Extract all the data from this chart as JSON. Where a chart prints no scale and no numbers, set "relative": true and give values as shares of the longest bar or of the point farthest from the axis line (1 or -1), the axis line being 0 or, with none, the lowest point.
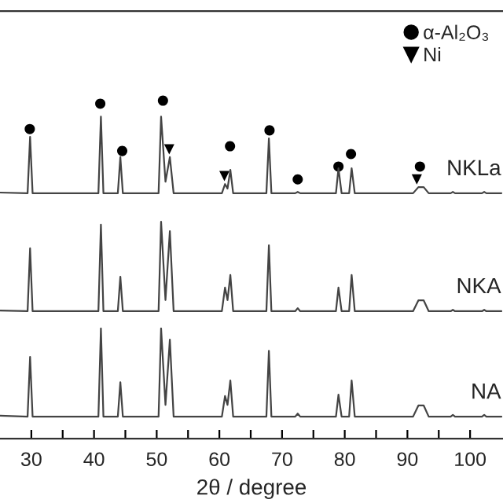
{
  "chart_data": {
    "type": "line",
    "relative": true,
    "xlabel": "2θ / degree",
    "x": [
      25,
      29.4,
      29.8,
      30.2,
      40.7,
      41.1,
      41.5,
      43.8,
      44.2,
      44.6,
      50.3,
      50.7,
      51.4,
      52.1,
      52.7,
      60.4,
      60.9,
      61.3,
      61.75,
      62.2,
      67.5,
      67.9,
      68.3,
      72.1,
      72.5,
      72.9,
      78.6,
      79,
      79.5,
      80.7,
      81.1,
      81.6,
      90.9,
      91.75,
      92.6,
      93.4,
      96.9,
      97.25,
      97.6,
      101.9,
      102.25,
      102.6,
      105
    ],
    "xlim": [
      25,
      105.25
    ],
    "xticks": [
      30,
      {
        "value": 35,
        "label": null
      },
      40,
      {
        "value": 45,
        "label": null
      },
      50,
      {
        "value": 55,
        "label": null
      },
      60,
      {
        "value": 65,
        "label": null
      },
      70,
      {
        "value": 75,
        "label": null
      },
      80,
      {
        "value": 85,
        "label": null
      },
      90,
      {
        "value": 95,
        "label": null
      },
      100
    ],
    "series": [
      {
        "name": "NKLa",
        "color": "#444444",
        "values": [
          0.728,
          0.726,
          0.893,
          0.726,
          0.726,
          0.953,
          0.726,
          0.726,
          0.833,
          0.726,
          0.726,
          0.953,
          0.76,
          0.833,
          0.726,
          0.726,
          0.753,
          0.74,
          0.795,
          0.726,
          0.726,
          0.888,
          0.726,
          0.726,
          0.73,
          0.726,
          0.726,
          0.8,
          0.726,
          0.726,
          0.8,
          0.726,
          0.726,
          0.744,
          0.744,
          0.726,
          0.726,
          0.73,
          0.726,
          0.726,
          0.73,
          0.726,
          0.726
        ]
      },
      {
        "name": "NKA",
        "color": "#444444",
        "values": [
          0.379,
          0.377,
          0.563,
          0.377,
          0.377,
          0.633,
          0.377,
          0.377,
          0.479,
          0.377,
          0.377,
          0.642,
          0.41,
          0.614,
          0.377,
          0.377,
          0.447,
          0.41,
          0.484,
          0.377,
          0.377,
          0.572,
          0.377,
          0.377,
          0.386,
          0.377,
          0.377,
          0.447,
          0.377,
          0.377,
          0.484,
          0.377,
          0.377,
          0.409,
          0.409,
          0.377,
          0.377,
          0.381,
          0.377,
          0.377,
          0.381,
          0.377,
          0.377
        ]
      },
      {
        "name": "NA",
        "color": "#444444",
        "values": [
          0.068,
          0.065,
          0.242,
          0.065,
          0.065,
          0.326,
          0.065,
          0.065,
          0.167,
          0.065,
          0.065,
          0.326,
          0.1,
          0.293,
          0.065,
          0.065,
          0.126,
          0.1,
          0.172,
          0.065,
          0.065,
          0.26,
          0.065,
          0.065,
          0.074,
          0.065,
          0.065,
          0.13,
          0.065,
          0.065,
          0.172,
          0.065,
          0.065,
          0.098,
          0.098,
          0.065,
          0.065,
          0.07,
          0.065,
          0.065,
          0.07,
          0.065,
          0.065
        ]
      },
      {
        "name": "α-Al₂O₃",
        "type": "scatter",
        "marker": "circle",
        "color": "#000000",
        "x": [
          29.75,
          41,
          44.5,
          51,
          61.7,
          68,
          72.5,
          79,
          81,
          92
        ],
        "values": [
          0.916,
          0.991,
          0.851,
          1.0,
          0.865,
          0.912,
          0.767,
          0.805,
          0.842,
          0.805
        ]
      },
      {
        "name": "Ni",
        "type": "scatter",
        "marker": "triangle",
        "color": "#000000",
        "x": [
          52,
          60.8,
          91.5
        ],
        "values": [
          0.856,
          0.777,
          0.767
        ]
      }
    ],
    "legend": "top right",
    "grid": false
  }
}
